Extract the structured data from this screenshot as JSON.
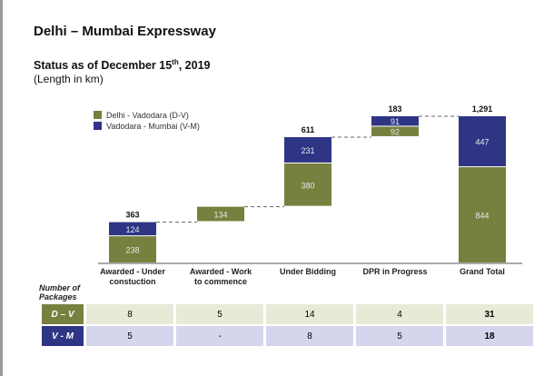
{
  "title": "Delhi – Mumbai Expressway",
  "subtitle_pre": "Status as of December 15",
  "subtitle_sup": "th",
  "subtitle_post": ", 2019",
  "unit": "(Length in km)",
  "colors": {
    "dv": "#77803f",
    "vm": "#2f3585"
  },
  "chart_data": {
    "type": "bar",
    "subtype": "stacked-waterfall",
    "categories": [
      "Awarded - Under constuction",
      "Awarded - Work to commence",
      "Under Bidding",
      "DPR in Progress",
      "Grand Total"
    ],
    "category_lines": [
      [
        "Awarded - Under",
        "constuction"
      ],
      [
        "Awarded - Work",
        "to commence"
      ],
      [
        "Under Bidding"
      ],
      [
        "DPR in Progress"
      ],
      [
        "Grand Total"
      ]
    ],
    "series": [
      {
        "name": "Delhi - Vadodara (D-V)",
        "values": [
          238,
          134,
          380,
          92,
          844
        ]
      },
      {
        "name": "Vadodara - Mumbai (V-M)",
        "values": [
          124,
          null,
          231,
          91,
          447
        ]
      }
    ],
    "bases": [
      0,
      363,
      497,
      1108,
      0
    ],
    "totals": [
      "363",
      "",
      "611",
      "183",
      "1,291"
    ],
    "ylim": [
      0,
      1291
    ],
    "legend": "top-left"
  },
  "table": {
    "label": [
      "Number of",
      "Packages"
    ],
    "rows": [
      {
        "name": "D – V",
        "values": [
          "8",
          "5",
          "14",
          "4",
          "31"
        ]
      },
      {
        "name": "V - M",
        "values": [
          "5",
          "-",
          "8",
          "5",
          "18"
        ]
      }
    ]
  }
}
